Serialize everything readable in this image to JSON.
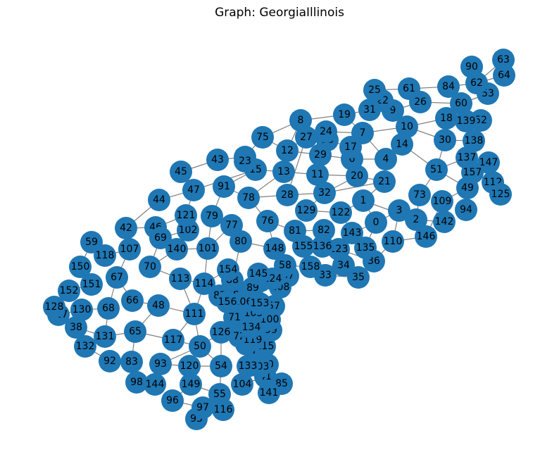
{
  "title": "Graph: GeorgiaIllinois",
  "colors": {
    "node": "#1f77b4",
    "edge": "#808080",
    "label": "#000000",
    "background": "#ffffff"
  },
  "nodes": [
    "0",
    "1",
    "2",
    "3",
    "4",
    "5",
    "6",
    "7",
    "8",
    "9",
    "10",
    "11",
    "12",
    "13",
    "14",
    "15",
    "16",
    "17",
    "18",
    "19",
    "20",
    "21",
    "22",
    "23",
    "24",
    "25",
    "26",
    "27",
    "28",
    "29",
    "30",
    "31",
    "32",
    "33",
    "34",
    "35",
    "36",
    "37",
    "38",
    "39",
    "40",
    "41",
    "42",
    "43",
    "44",
    "45",
    "46",
    "47",
    "48",
    "49",
    "50",
    "51",
    "52",
    "53",
    "54",
    "55",
    "56",
    "57",
    "58",
    "59",
    "60",
    "61",
    "62",
    "63",
    "64",
    "65",
    "66",
    "67",
    "68",
    "69",
    "70",
    "71",
    "72",
    "73",
    "74",
    "75",
    "76",
    "77",
    "78",
    "79",
    "80",
    "81",
    "82",
    "83",
    "84",
    "85",
    "86",
    "87",
    "88",
    "89",
    "90",
    "91",
    "92",
    "93",
    "94",
    "95",
    "96",
    "97",
    "98",
    "99",
    "100",
    "101",
    "102",
    "103",
    "104",
    "105",
    "106",
    "107",
    "108",
    "109",
    "110",
    "111",
    "112",
    "113",
    "114",
    "115",
    "116",
    "117",
    "118",
    "119",
    "120",
    "121",
    "122",
    "123",
    "124",
    "125",
    "126",
    "127",
    "128",
    "129",
    "130",
    "131",
    "132",
    "133",
    "134",
    "135",
    "136",
    "137",
    "138",
    "139",
    "140",
    "141",
    "142",
    "143",
    "144",
    "145",
    "146",
    "147",
    "148",
    "149",
    "150",
    "151",
    "152",
    "153",
    "154",
    "155",
    "156",
    "157",
    "158"
  ],
  "edges": [
    [
      "63",
      "64"
    ],
    [
      "63",
      "62"
    ],
    [
      "64",
      "62"
    ],
    [
      "90",
      "62"
    ],
    [
      "62",
      "53"
    ],
    [
      "62",
      "84"
    ],
    [
      "84",
      "61"
    ],
    [
      "84",
      "60"
    ],
    [
      "53",
      "60"
    ],
    [
      "61",
      "25"
    ],
    [
      "61",
      "26"
    ],
    [
      "25",
      "31"
    ],
    [
      "25",
      "22"
    ],
    [
      "22",
      "9"
    ],
    [
      "26",
      "9"
    ],
    [
      "26",
      "60"
    ],
    [
      "60",
      "52"
    ],
    [
      "60",
      "139"
    ],
    [
      "18",
      "139"
    ],
    [
      "52",
      "139"
    ],
    [
      "18",
      "10"
    ],
    [
      "9",
      "10"
    ],
    [
      "9",
      "31"
    ],
    [
      "31",
      "19"
    ],
    [
      "19",
      "8"
    ],
    [
      "19",
      "7"
    ],
    [
      "10",
      "7"
    ],
    [
      "10",
      "14"
    ],
    [
      "10",
      "30"
    ],
    [
      "30",
      "138"
    ],
    [
      "139",
      "138"
    ],
    [
      "18",
      "30"
    ],
    [
      "30",
      "51"
    ],
    [
      "14",
      "4"
    ],
    [
      "14",
      "51"
    ],
    [
      "138",
      "137"
    ],
    [
      "137",
      "51"
    ],
    [
      "137",
      "157"
    ],
    [
      "147",
      "157"
    ],
    [
      "157",
      "112"
    ],
    [
      "112",
      "125"
    ],
    [
      "147",
      "49"
    ],
    [
      "49",
      "51"
    ],
    [
      "49",
      "109"
    ],
    [
      "49",
      "94"
    ],
    [
      "51",
      "73"
    ],
    [
      "73",
      "2"
    ],
    [
      "109",
      "142"
    ],
    [
      "142",
      "2"
    ],
    [
      "109",
      "146"
    ],
    [
      "2",
      "146"
    ],
    [
      "2",
      "3"
    ],
    [
      "3",
      "0"
    ],
    [
      "3",
      "110"
    ],
    [
      "0",
      "1"
    ],
    [
      "0",
      "135"
    ],
    [
      "0",
      "143"
    ],
    [
      "1",
      "21"
    ],
    [
      "1",
      "122"
    ],
    [
      "21",
      "4"
    ],
    [
      "21",
      "20"
    ],
    [
      "4",
      "7"
    ],
    [
      "4",
      "6"
    ],
    [
      "7",
      "24"
    ],
    [
      "7",
      "17"
    ],
    [
      "24",
      "27"
    ],
    [
      "24",
      "16"
    ],
    [
      "27",
      "8"
    ],
    [
      "27",
      "12"
    ],
    [
      "16",
      "17"
    ],
    [
      "17",
      "6"
    ],
    [
      "6",
      "20"
    ],
    [
      "20",
      "11"
    ],
    [
      "20",
      "32"
    ],
    [
      "29",
      "12"
    ],
    [
      "29",
      "11"
    ],
    [
      "29",
      "6"
    ],
    [
      "11",
      "13"
    ],
    [
      "13",
      "12"
    ],
    [
      "12",
      "75"
    ],
    [
      "75",
      "8"
    ],
    [
      "75",
      "5"
    ],
    [
      "5",
      "23"
    ],
    [
      "23",
      "15"
    ],
    [
      "15",
      "13"
    ],
    [
      "15",
      "47"
    ],
    [
      "5",
      "43"
    ],
    [
      "43",
      "45"
    ],
    [
      "45",
      "47"
    ],
    [
      "47",
      "44"
    ],
    [
      "44",
      "42"
    ],
    [
      "42",
      "46"
    ],
    [
      "46",
      "121"
    ],
    [
      "121",
      "47"
    ],
    [
      "121",
      "102"
    ],
    [
      "102",
      "69"
    ],
    [
      "69",
      "46"
    ],
    [
      "69",
      "70"
    ],
    [
      "70",
      "140"
    ],
    [
      "140",
      "101"
    ],
    [
      "101",
      "79"
    ],
    [
      "79",
      "91"
    ],
    [
      "91",
      "78"
    ],
    [
      "78",
      "28"
    ],
    [
      "28",
      "32"
    ],
    [
      "32",
      "129"
    ],
    [
      "129",
      "122"
    ],
    [
      "122",
      "143"
    ],
    [
      "143",
      "135"
    ],
    [
      "135",
      "36"
    ],
    [
      "36",
      "123"
    ],
    [
      "123",
      "136"
    ],
    [
      "136",
      "155"
    ],
    [
      "155",
      "81"
    ],
    [
      "81",
      "82"
    ],
    [
      "82",
      "123"
    ],
    [
      "81",
      "76"
    ],
    [
      "76",
      "78"
    ],
    [
      "76",
      "148"
    ],
    [
      "148",
      "80"
    ],
    [
      "80",
      "77"
    ],
    [
      "77",
      "79"
    ],
    [
      "77",
      "101"
    ],
    [
      "148",
      "58"
    ],
    [
      "58",
      "158"
    ],
    [
      "158",
      "34"
    ],
    [
      "34",
      "33"
    ],
    [
      "33",
      "35"
    ],
    [
      "34",
      "35"
    ],
    [
      "34",
      "123"
    ],
    [
      "58",
      "145"
    ],
    [
      "145",
      "56"
    ],
    [
      "56",
      "124"
    ],
    [
      "124",
      "37"
    ],
    [
      "37",
      "108"
    ],
    [
      "108",
      "89"
    ],
    [
      "89",
      "88"
    ],
    [
      "88",
      "154"
    ],
    [
      "154",
      "86"
    ],
    [
      "86",
      "87"
    ],
    [
      "87",
      "156"
    ],
    [
      "156",
      "106"
    ],
    [
      "106",
      "153"
    ],
    [
      "153",
      "57"
    ],
    [
      "57",
      "105"
    ],
    [
      "105",
      "71"
    ],
    [
      "71",
      "100"
    ],
    [
      "100",
      "99"
    ],
    [
      "99",
      "134"
    ],
    [
      "134",
      "72"
    ],
    [
      "72",
      "119"
    ],
    [
      "119",
      "39"
    ],
    [
      "39",
      "74"
    ],
    [
      "74",
      "115"
    ],
    [
      "115",
      "103"
    ],
    [
      "103",
      "133"
    ],
    [
      "133",
      "40"
    ],
    [
      "40",
      "85"
    ],
    [
      "41",
      "141"
    ],
    [
      "41",
      "104"
    ],
    [
      "104",
      "133"
    ],
    [
      "54",
      "126"
    ],
    [
      "126",
      "72"
    ],
    [
      "54",
      "55"
    ],
    [
      "55",
      "116"
    ],
    [
      "55",
      "97"
    ],
    [
      "97",
      "95"
    ],
    [
      "97",
      "96"
    ],
    [
      "96",
      "149"
    ],
    [
      "149",
      "120"
    ],
    [
      "120",
      "54"
    ],
    [
      "120",
      "93"
    ],
    [
      "93",
      "144"
    ],
    [
      "144",
      "98"
    ],
    [
      "98",
      "83"
    ],
    [
      "83",
      "92"
    ],
    [
      "92",
      "132"
    ],
    [
      "132",
      "38"
    ],
    [
      "38",
      "131"
    ],
    [
      "131",
      "65"
    ],
    [
      "65",
      "117"
    ],
    [
      "117",
      "111"
    ],
    [
      "111",
      "113"
    ],
    [
      "113",
      "70"
    ],
    [
      "111",
      "48"
    ],
    [
      "48",
      "66"
    ],
    [
      "66",
      "67"
    ],
    [
      "67",
      "107"
    ],
    [
      "107",
      "118"
    ],
    [
      "118",
      "59"
    ],
    [
      "59",
      "150"
    ],
    [
      "150",
      "151"
    ],
    [
      "151",
      "152"
    ],
    [
      "152",
      "128"
    ],
    [
      "128",
      "127"
    ],
    [
      "127",
      "130"
    ],
    [
      "130",
      "38"
    ],
    [
      "130",
      "68"
    ],
    [
      "68",
      "67"
    ],
    [
      "68",
      "131"
    ],
    [
      "65",
      "48"
    ],
    [
      "50",
      "117"
    ],
    [
      "50",
      "54"
    ],
    [
      "50",
      "111"
    ],
    [
      "114",
      "113"
    ],
    [
      "114",
      "111"
    ],
    [
      "114",
      "154"
    ],
    [
      "114",
      "101"
    ],
    [
      "80",
      "88"
    ],
    [
      "1",
      "2"
    ],
    [
      "28",
      "27"
    ],
    [
      "32",
      "21"
    ],
    [
      "13",
      "78"
    ],
    [
      "15",
      "91"
    ],
    [
      "8",
      "12"
    ],
    [
      "107",
      "42"
    ],
    [
      "65",
      "83"
    ],
    [
      "93",
      "50"
    ],
    [
      "149",
      "55"
    ],
    [
      "126",
      "50"
    ],
    [
      "110",
      "36"
    ],
    [
      "146",
      "110"
    ]
  ]
}
